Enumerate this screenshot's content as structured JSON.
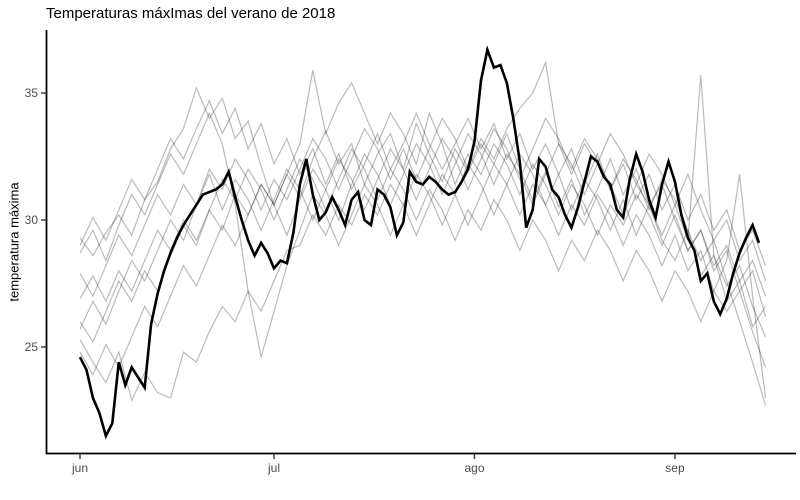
{
  "title": "Temperaturas máxImas del verano de 2018",
  "colors": {
    "background": "#ffffff",
    "highlight_line": "#000000",
    "background_lines": "rgba(0,0,0,0.27)",
    "axis_line": "#000000",
    "tick_text": "#4d4d4d"
  },
  "chart_data": {
    "type": "line",
    "title": "Temperaturas máxImas del verano de 2018",
    "xlabel": "",
    "ylabel": "temperatura máxima",
    "grid": false,
    "legend": "none",
    "x_axis": {
      "unit": "days since 1 jun",
      "tick_labels": [
        "jun",
        "jul",
        "ago",
        "sep"
      ],
      "tick_days": [
        0,
        30,
        61,
        92
      ],
      "range_days": [
        -5.2,
        110.7
      ]
    },
    "y_axis": {
      "tick_values": [
        25,
        30,
        35
      ],
      "range": [
        20.8,
        37.5
      ]
    },
    "highlight_series": {
      "name": "2018",
      "step_days": 1,
      "start_day": 0,
      "values": [
        24.6,
        24.1,
        23.0,
        22.4,
        21.5,
        22.0,
        24.4,
        23.5,
        24.2,
        23.8,
        23.4,
        25.9,
        27.1,
        28.0,
        28.7,
        29.3,
        29.8,
        30.2,
        30.6,
        31.0,
        31.1,
        31.2,
        31.4,
        31.9,
        30.9,
        30.0,
        29.2,
        28.6,
        29.1,
        28.7,
        28.1,
        28.4,
        28.3,
        29.5,
        31.4,
        32.4,
        31.0,
        30.0,
        30.3,
        30.9,
        30.4,
        29.8,
        30.8,
        31.1,
        30.0,
        29.8,
        31.2,
        31.0,
        30.5,
        29.4,
        29.9,
        31.9,
        31.5,
        31.4,
        31.7,
        31.5,
        31.2,
        31.0,
        31.1,
        31.5,
        32.0,
        33.1,
        35.5,
        36.7,
        36.0,
        36.1,
        35.4,
        34.0,
        32.3,
        29.7,
        30.4,
        32.4,
        32.1,
        31.2,
        30.9,
        30.2,
        29.7,
        30.5,
        31.5,
        32.5,
        32.3,
        31.7,
        31.4,
        30.4,
        30.1,
        31.6,
        32.6,
        31.9,
        30.8,
        30.1,
        31.4,
        32.3,
        31.5,
        30.2,
        29.3,
        28.8,
        27.6,
        27.9,
        26.8,
        26.3,
        26.9,
        27.9,
        28.7,
        29.3,
        29.8,
        29.1
      ]
    },
    "background_series": [
      {
        "name": "gray-line-1",
        "step_days": 2,
        "start_day": 0,
        "values": [
          29.3,
          28.6,
          29.5,
          30.2,
          29.4,
          30.8,
          31.5,
          32.8,
          33.6,
          35.2,
          34.0,
          34.8,
          33.2,
          33.9,
          32.1,
          30.6,
          31.8,
          30.9,
          32.4,
          33.5,
          32.2,
          33.0,
          31.4,
          32.6,
          33.4,
          32.0,
          33.8,
          32.6,
          31.5,
          32.8,
          31.9,
          33.0,
          32.2,
          33.4,
          32.0,
          30.8,
          31.9,
          30.5,
          31.6,
          30.2,
          31.2,
          32.4,
          31.0,
          32.0,
          30.6,
          31.4,
          30.0,
          28.8,
          29.6,
          28.2,
          29.0,
          27.6,
          28.4,
          27.0
        ]
      },
      {
        "name": "gray-line-2",
        "step_days": 2,
        "start_day": 0,
        "values": [
          26.0,
          25.2,
          26.4,
          27.6,
          26.8,
          28.0,
          27.2,
          28.6,
          29.8,
          29.0,
          30.4,
          29.6,
          31.0,
          30.2,
          31.4,
          30.6,
          29.4,
          30.8,
          32.0,
          31.2,
          30.0,
          31.4,
          32.6,
          31.8,
          30.6,
          31.8,
          33.0,
          32.2,
          31.0,
          32.2,
          33.4,
          32.6,
          31.4,
          32.6,
          31.8,
          30.6,
          31.8,
          33.0,
          32.2,
          31.0,
          32.2,
          31.4,
          30.2,
          31.4,
          30.6,
          29.4,
          30.6,
          29.2,
          35.7,
          28.6,
          27.4,
          28.2,
          26.6,
          25.4
        ]
      },
      {
        "name": "gray-line-3",
        "step_days": 2,
        "start_day": 0,
        "values": [
          25.7,
          26.8,
          25.9,
          27.2,
          28.4,
          27.6,
          28.8,
          30.0,
          29.2,
          30.6,
          31.8,
          30.4,
          31.6,
          30.8,
          29.6,
          30.8,
          32.0,
          31.2,
          30.0,
          31.2,
          32.4,
          31.6,
          30.4,
          31.6,
          32.8,
          32.0,
          30.8,
          32.0,
          33.2,
          32.4,
          31.2,
          32.4,
          33.6,
          32.8,
          31.6,
          32.8,
          34.0,
          33.2,
          32.0,
          33.2,
          32.4,
          31.2,
          32.4,
          31.6,
          30.4,
          31.6,
          30.8,
          29.6,
          28.4,
          29.2,
          27.6,
          26.0,
          24.4,
          22.7
        ]
      },
      {
        "name": "gray-line-4",
        "step_days": 2,
        "start_day": 0,
        "values": [
          28.7,
          29.6,
          28.4,
          29.8,
          31.0,
          30.2,
          31.4,
          32.6,
          31.8,
          33.0,
          34.2,
          33.0,
          30.6,
          27.2,
          24.6,
          26.4,
          28.2,
          29.6,
          31.0,
          30.2,
          29.0,
          30.2,
          31.4,
          30.6,
          29.4,
          30.6,
          31.8,
          31.0,
          29.8,
          31.0,
          32.2,
          31.4,
          30.2,
          31.4,
          32.6,
          31.8,
          30.6,
          31.8,
          30.4,
          31.6,
          30.8,
          29.6,
          30.8,
          29.4,
          30.6,
          29.2,
          28.4,
          29.6,
          27.8,
          28.6,
          26.8,
          27.6,
          25.8,
          26.6
        ]
      },
      {
        "name": "gray-line-5",
        "step_days": 2,
        "start_day": 0,
        "values": [
          27.9,
          27.0,
          28.2,
          29.4,
          28.6,
          29.8,
          31.0,
          30.2,
          31.4,
          30.6,
          32.0,
          31.2,
          32.4,
          31.6,
          30.4,
          31.6,
          30.8,
          32.0,
          33.2,
          32.4,
          31.2,
          32.4,
          33.6,
          32.8,
          31.6,
          32.8,
          31.6,
          32.8,
          34.0,
          33.2,
          32.0,
          33.2,
          32.4,
          33.6,
          34.4,
          35.0,
          36.2,
          33.0,
          31.8,
          33.0,
          32.2,
          33.4,
          32.6,
          31.4,
          32.6,
          31.8,
          30.6,
          31.8,
          30.4,
          29.2,
          30.0,
          28.4,
          29.2,
          27.6
        ]
      },
      {
        "name": "gray-line-6",
        "step_days": 2,
        "start_day": 0,
        "values": [
          24.8,
          23.9,
          25.1,
          24.2,
          25.4,
          26.6,
          25.8,
          27.0,
          28.2,
          27.4,
          28.6,
          29.8,
          29.0,
          30.2,
          31.4,
          30.6,
          31.8,
          33.0,
          35.9,
          33.4,
          34.6,
          35.4,
          34.2,
          33.0,
          34.2,
          33.4,
          32.2,
          34.2,
          33.0,
          31.4,
          32.6,
          31.8,
          33.0,
          32.2,
          31.0,
          32.2,
          31.4,
          30.2,
          31.4,
          30.6,
          29.4,
          30.6,
          29.8,
          31.0,
          30.2,
          29.0,
          30.2,
          28.8,
          29.6,
          28.0,
          28.8,
          27.2,
          28.0,
          26.2
        ]
      },
      {
        "name": "gray-line-7",
        "step_days": 2,
        "start_day": 0,
        "values": [
          25.3,
          24.4,
          23.6,
          24.8,
          22.9,
          24.0,
          23.2,
          23.0,
          24.8,
          24.4,
          25.6,
          26.6,
          26.0,
          27.2,
          26.4,
          27.6,
          28.8,
          29.0,
          30.2,
          29.4,
          30.6,
          29.8,
          31.0,
          30.2,
          31.4,
          30.6,
          29.4,
          30.6,
          31.8,
          31.0,
          29.8,
          31.0,
          32.2,
          31.4,
          30.2,
          31.4,
          30.6,
          29.4,
          30.6,
          29.8,
          31.0,
          30.2,
          29.0,
          30.2,
          29.4,
          28.2,
          29.4,
          28.0,
          28.8,
          27.2,
          26.4,
          27.2,
          25.6,
          24.2
        ]
      },
      {
        "name": "gray-line-8",
        "step_days": 2,
        "start_day": 0,
        "values": [
          29.0,
          30.1,
          29.2,
          30.4,
          31.6,
          30.8,
          32.0,
          33.2,
          32.4,
          33.6,
          34.7,
          33.4,
          34.4,
          32.8,
          33.8,
          32.2,
          33.2,
          31.8,
          32.8,
          31.4,
          32.6,
          31.2,
          32.2,
          33.4,
          32.0,
          33.0,
          34.2,
          33.0,
          32.0,
          33.0,
          34.0,
          32.8,
          33.8,
          32.4,
          33.4,
          32.0,
          33.0,
          31.8,
          32.8,
          31.4,
          32.6,
          31.2,
          32.2,
          30.8,
          31.8,
          30.4,
          31.4,
          30.0,
          31.0,
          29.6,
          30.4,
          28.8,
          29.6,
          28.2
        ]
      },
      {
        "name": "gray-line-9",
        "step_days": 2,
        "start_day": 0,
        "values": [
          26.9,
          27.8,
          26.8,
          28.0,
          27.2,
          28.4,
          29.6,
          28.8,
          30.0,
          29.2,
          30.4,
          31.6,
          30.8,
          32.0,
          31.2,
          30.0,
          31.2,
          32.4,
          31.6,
          30.4,
          31.6,
          32.8,
          32.0,
          30.8,
          32.0,
          31.2,
          30.0,
          31.2,
          30.4,
          29.2,
          30.4,
          29.6,
          30.8,
          30.0,
          28.8,
          30.0,
          29.2,
          28.0,
          29.2,
          28.4,
          29.6,
          28.8,
          27.6,
          28.8,
          28.0,
          26.8,
          28.0,
          27.2,
          26.0,
          27.2,
          28.4,
          31.8,
          27.0,
          23.0
        ]
      }
    ]
  }
}
